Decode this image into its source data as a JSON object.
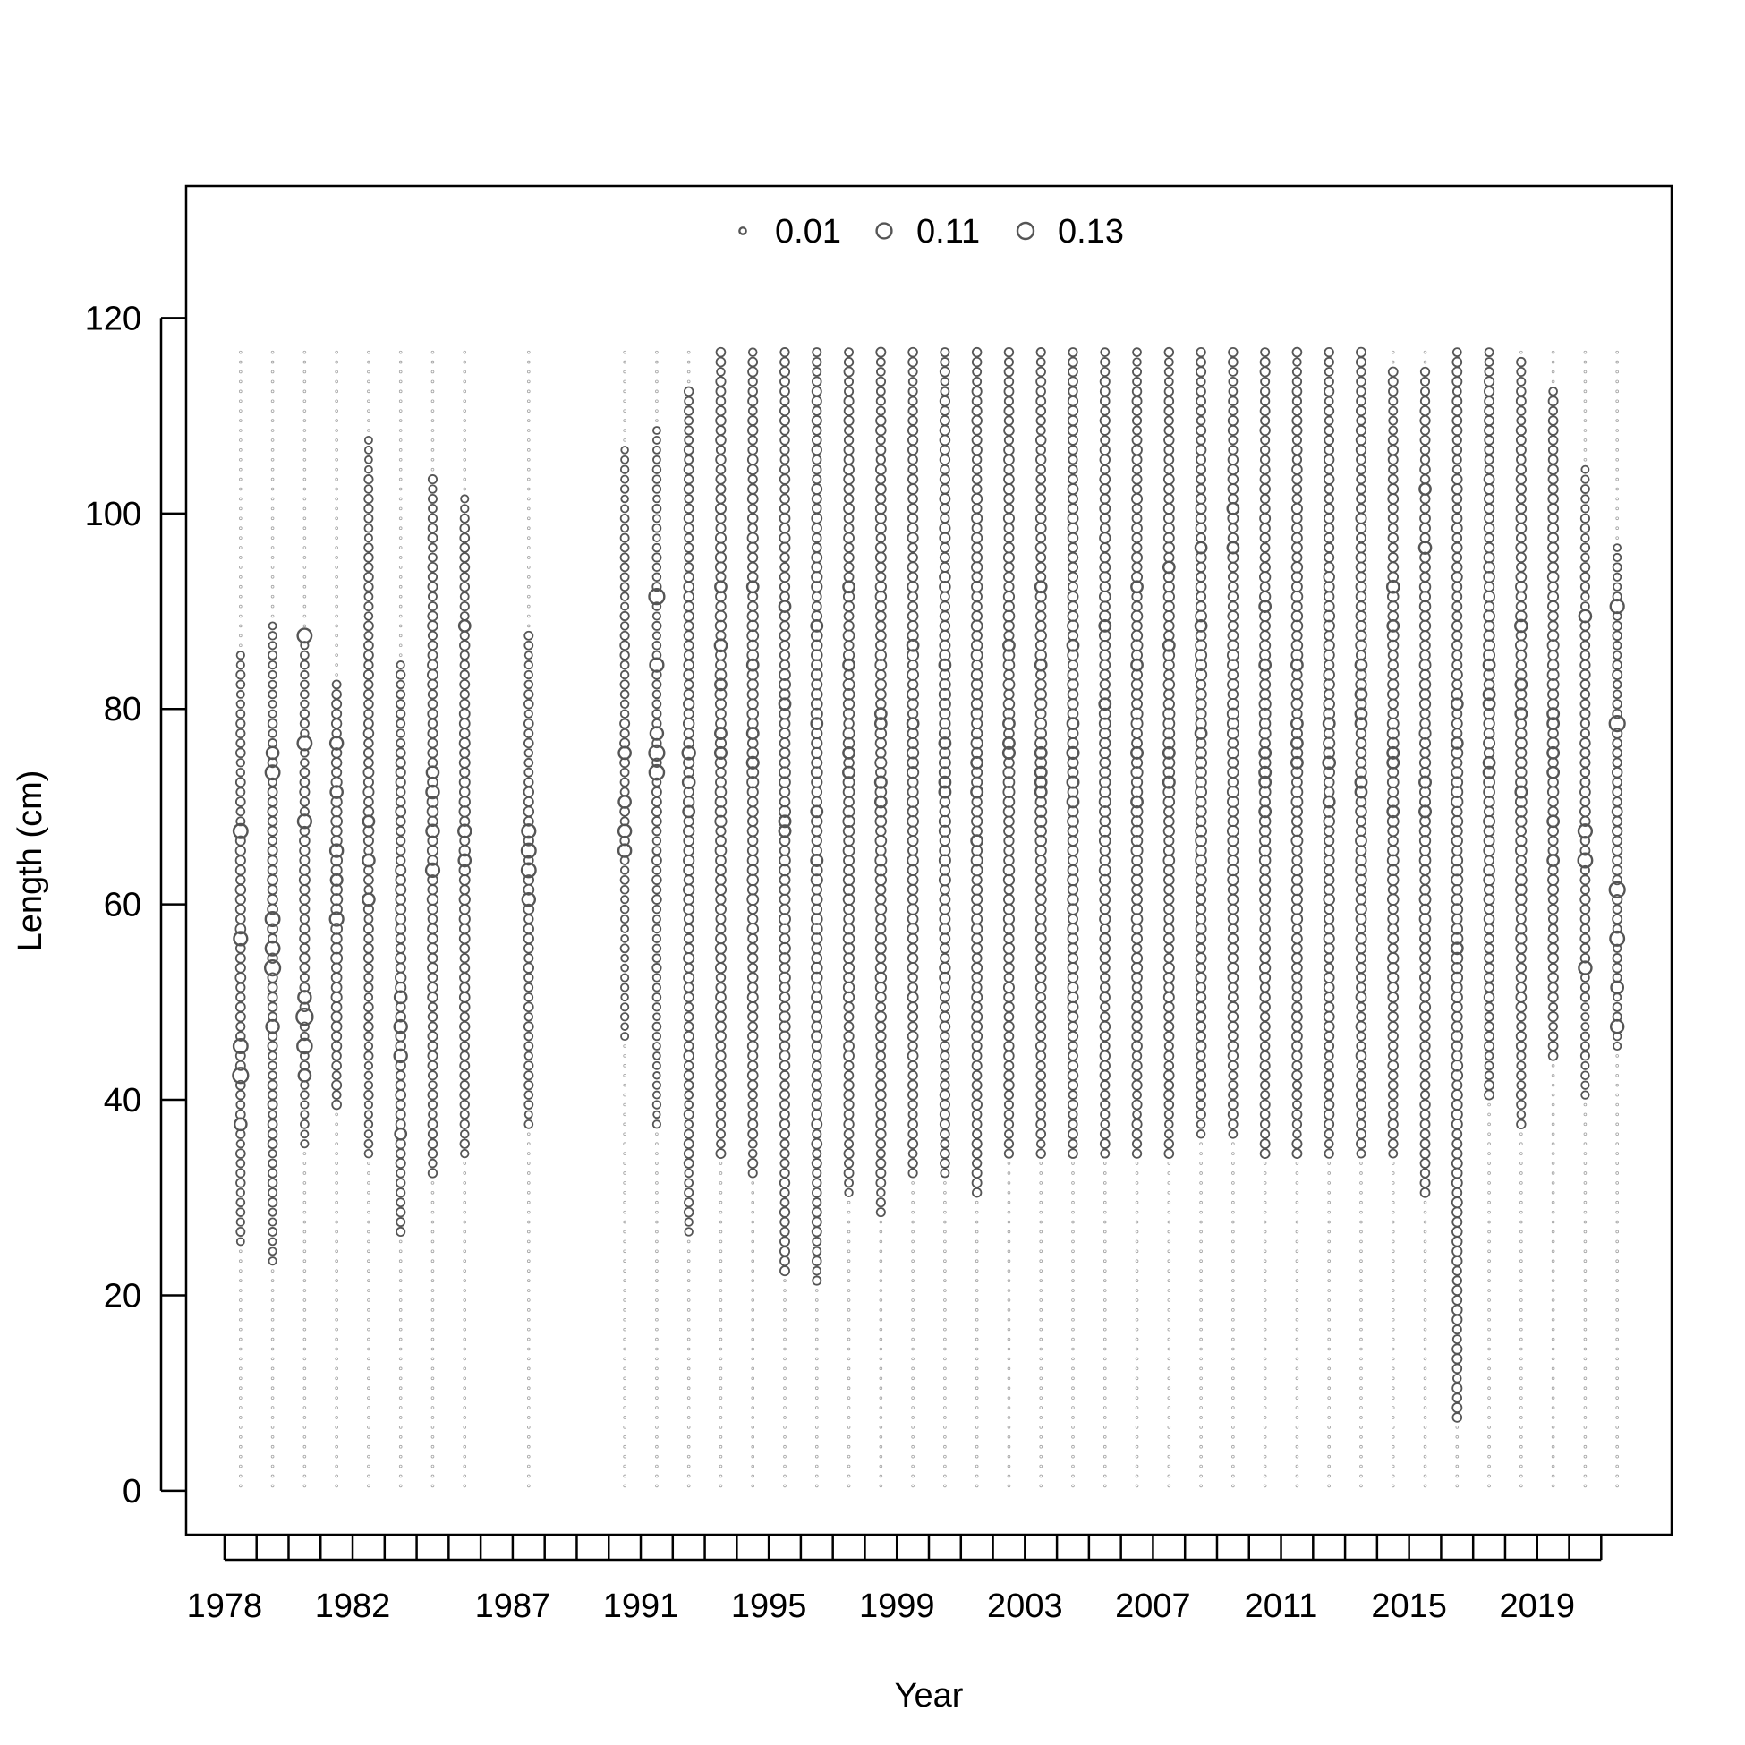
{
  "chart_data": {
    "type": "scatter",
    "subtype": "bubble",
    "xlabel": "Year",
    "ylabel": "Length (cm)",
    "xlim": [
      1976.8,
      2023.2
    ],
    "ylim": [
      -4.5,
      133.5
    ],
    "x_ticks": [
      1978,
      1979,
      1980,
      1981,
      1982,
      1983,
      1984,
      1985,
      1986,
      1987,
      1988,
      1989,
      1990,
      1991,
      1992,
      1993,
      1994,
      1995,
      1996,
      1997,
      1998,
      1999,
      2000,
      2001,
      2002,
      2003,
      2004,
      2005,
      2006,
      2007,
      2008,
      2009,
      2010,
      2011,
      2012,
      2013,
      2014,
      2015,
      2016,
      2017,
      2018,
      2019,
      2020,
      2021
    ],
    "x_tick_labels": [
      "1978",
      "1982",
      "1987",
      "1991",
      "1995",
      "1999",
      "2003",
      "2007",
      "2011",
      "2015",
      "2019"
    ],
    "y_ticks": [
      0,
      20,
      40,
      60,
      80,
      100,
      120
    ],
    "y_tick_labels": [
      "0",
      "20",
      "40",
      "60",
      "80",
      "100",
      "120"
    ],
    "length_bins": {
      "start": 0.5,
      "end": 116.5,
      "step": 1
    },
    "legend": {
      "placement": "top-center",
      "entries": [
        {
          "label": "0.01",
          "value": 0.01
        },
        {
          "label": "0.11",
          "value": 0.11
        },
        {
          "label": "0.13",
          "value": 0.13
        }
      ]
    },
    "grid": false,
    "colors": {
      "points": "#555555",
      "axes": "#000000"
    },
    "x_values": [
      1978.5,
      1979.5,
      1980.5,
      1981.5,
      1982.5,
      1983.5,
      1984.5,
      1985.5,
      1987.5,
      1990.5,
      1991.5,
      1992.5,
      1993.5,
      1994.5,
      1995.5,
      1996.5,
      1997.5,
      1998.5,
      1999.5,
      2000.5,
      2001.5,
      2002.5,
      2003.5,
      2004.5,
      2005.5,
      2006.5,
      2007.5,
      2008.5,
      2009.5,
      2010.5,
      2011.5,
      2012.5,
      2013.5,
      2014.5,
      2015.5,
      2016.5,
      2017.5,
      2018.5,
      2019.5,
      2020.5,
      2021.5
    ],
    "series": [
      {
        "x": 1978.5,
        "range": [
          25,
          86
        ],
        "mean": 0.025,
        "peaks": [
          [
            42.5,
            0.11
          ],
          [
            45.5,
            0.09
          ],
          [
            56.5,
            0.08
          ],
          [
            67.5,
            0.09
          ],
          [
            37.5,
            0.06
          ]
        ]
      },
      {
        "x": 1979.5,
        "range": [
          23,
          89
        ],
        "mean": 0.025,
        "peaks": [
          [
            53.5,
            0.11
          ],
          [
            55.5,
            0.09
          ],
          [
            58.5,
            0.09
          ],
          [
            73.5,
            0.09
          ],
          [
            47.5,
            0.07
          ],
          [
            75.5,
            0.06
          ]
        ]
      },
      {
        "x": 1980.5,
        "range": [
          35,
          88
        ],
        "mean": 0.025,
        "peaks": [
          [
            48.5,
            0.13
          ],
          [
            45.5,
            0.1
          ],
          [
            87.5,
            0.09
          ],
          [
            76.5,
            0.09
          ],
          [
            68.5,
            0.08
          ],
          [
            50.5,
            0.07
          ],
          [
            42.5,
            0.06
          ]
        ]
      },
      {
        "x": 1981.5,
        "range": [
          39,
          83
        ],
        "mean": 0.035,
        "peaks": [
          [
            58.5,
            0.08
          ],
          [
            65.5,
            0.07
          ],
          [
            76.5,
            0.07
          ],
          [
            71.5,
            0.06
          ]
        ]
      },
      {
        "x": 1982.5,
        "range": [
          34,
          108
        ],
        "mean": 0.025,
        "peaks": [
          [
            60.5,
            0.06
          ],
          [
            64.5,
            0.06
          ],
          [
            68.5,
            0.05
          ]
        ]
      },
      {
        "x": 1983.5,
        "range": [
          26,
          85
        ],
        "mean": 0.03,
        "peaks": [
          [
            44.5,
            0.07
          ],
          [
            47.5,
            0.07
          ],
          [
            50.5,
            0.06
          ],
          [
            36.5,
            0.05
          ]
        ]
      },
      {
        "x": 1984.5,
        "range": [
          32,
          104
        ],
        "mean": 0.03,
        "peaks": [
          [
            63.5,
            0.08
          ],
          [
            67.5,
            0.07
          ],
          [
            71.5,
            0.07
          ],
          [
            73.5,
            0.06
          ]
        ]
      },
      {
        "x": 1985.5,
        "range": [
          34,
          102
        ],
        "mean": 0.03,
        "peaks": [
          [
            67.5,
            0.07
          ],
          [
            64.5,
            0.06
          ],
          [
            88.5,
            0.05
          ]
        ]
      },
      {
        "x": 1987.5,
        "range": [
          37,
          88
        ],
        "mean": 0.025,
        "peaks": [
          [
            63.5,
            0.09
          ],
          [
            65.5,
            0.09
          ],
          [
            67.5,
            0.08
          ],
          [
            60.5,
            0.07
          ]
        ]
      },
      {
        "x": 1990.5,
        "range": [
          46,
          107
        ],
        "mean": 0.02,
        "peaks": [
          [
            65.5,
            0.07
          ],
          [
            67.5,
            0.07
          ],
          [
            70.5,
            0.06
          ],
          [
            75.5,
            0.06
          ]
        ]
      },
      {
        "x": 1991.5,
        "range": [
          37,
          109
        ],
        "mean": 0.02,
        "peaks": [
          [
            91.5,
            0.11
          ],
          [
            75.5,
            0.11
          ],
          [
            73.5,
            0.1
          ],
          [
            84.5,
            0.08
          ],
          [
            77.5,
            0.07
          ]
        ]
      },
      {
        "x": 1992.5,
        "range": [
          26,
          113
        ],
        "mean": 0.03,
        "peaks": [
          [
            75.5,
            0.07
          ],
          [
            72.5,
            0.06
          ],
          [
            69.5,
            0.05
          ]
        ]
      },
      {
        "x": 1993.5,
        "range": [
          34,
          117
        ],
        "mean": 0.035,
        "peaks": [
          [
            86.5,
            0.06
          ],
          [
            82.5,
            0.05
          ],
          [
            92.5,
            0.05
          ]
        ]
      },
      {
        "x": 1994.5,
        "range": [
          32,
          117
        ],
        "mean": 0.035,
        "peaks": [
          [
            92.5,
            0.05
          ],
          [
            84.5,
            0.05
          ]
        ]
      },
      {
        "x": 1995.5,
        "range": [
          22,
          117
        ],
        "mean": 0.035,
        "peaks": [
          [
            90.5,
            0.05
          ],
          [
            80.5,
            0.05
          ]
        ]
      },
      {
        "x": 1996.5,
        "range": [
          21,
          117
        ],
        "mean": 0.035,
        "peaks": [
          [
            88.5,
            0.05
          ],
          [
            78.5,
            0.05
          ]
        ]
      },
      {
        "x": 1997.5,
        "range": [
          30,
          117
        ],
        "mean": 0.035,
        "peaks": [
          [
            92.5,
            0.05
          ],
          [
            84.5,
            0.05
          ]
        ]
      },
      {
        "x": 1998.5,
        "range": [
          28,
          117
        ],
        "mean": 0.035,
        "peaks": [
          [
            78.5,
            0.05
          ],
          [
            70.5,
            0.05
          ]
        ]
      },
      {
        "x": 1999.5,
        "range": [
          32,
          117
        ],
        "mean": 0.035,
        "peaks": [
          [
            78.5,
            0.05
          ],
          [
            86.5,
            0.05
          ]
        ]
      },
      {
        "x": 2000.5,
        "range": [
          32,
          117
        ],
        "mean": 0.035,
        "peaks": [
          [
            84.5,
            0.05
          ],
          [
            76.5,
            0.05
          ]
        ]
      },
      {
        "x": 2001.5,
        "range": [
          30,
          117
        ],
        "mean": 0.035,
        "peaks": [
          [
            74.5,
            0.05
          ],
          [
            66.5,
            0.05
          ]
        ]
      },
      {
        "x": 2002.5,
        "range": [
          34,
          117
        ],
        "mean": 0.035,
        "peaks": [
          [
            78.5,
            0.05
          ],
          [
            86.5,
            0.05
          ]
        ]
      },
      {
        "x": 2003.5,
        "range": [
          34,
          117
        ],
        "mean": 0.035,
        "peaks": [
          [
            84.5,
            0.05
          ],
          [
            92.5,
            0.05
          ]
        ]
      },
      {
        "x": 2004.5,
        "range": [
          34,
          117
        ],
        "mean": 0.035,
        "peaks": [
          [
            86.5,
            0.05
          ],
          [
            78.5,
            0.05
          ]
        ]
      },
      {
        "x": 2005.5,
        "range": [
          34,
          117
        ],
        "mean": 0.035,
        "peaks": [
          [
            80.5,
            0.05
          ],
          [
            88.5,
            0.05
          ]
        ]
      },
      {
        "x": 2006.5,
        "range": [
          34,
          117
        ],
        "mean": 0.035,
        "peaks": [
          [
            84.5,
            0.05
          ],
          [
            92.5,
            0.05
          ]
        ]
      },
      {
        "x": 2007.5,
        "range": [
          34,
          117
        ],
        "mean": 0.035,
        "peaks": [
          [
            94.5,
            0.05
          ],
          [
            86.5,
            0.05
          ]
        ]
      },
      {
        "x": 2008.5,
        "range": [
          36,
          117
        ],
        "mean": 0.035,
        "peaks": [
          [
            96.5,
            0.05
          ],
          [
            88.5,
            0.05
          ]
        ]
      },
      {
        "x": 2009.5,
        "range": [
          36,
          117
        ],
        "mean": 0.035,
        "peaks": [
          [
            96.5,
            0.05
          ],
          [
            100.5,
            0.05
          ]
        ]
      },
      {
        "x": 2010.5,
        "range": [
          34,
          117
        ],
        "mean": 0.035,
        "peaks": [
          [
            90.5,
            0.05
          ],
          [
            84.5,
            0.05
          ]
        ]
      },
      {
        "x": 2011.5,
        "range": [
          34,
          117
        ],
        "mean": 0.035,
        "peaks": [
          [
            84.5,
            0.05
          ],
          [
            76.5,
            0.05
          ]
        ]
      },
      {
        "x": 2012.5,
        "range": [
          34,
          117
        ],
        "mean": 0.035,
        "peaks": [
          [
            74.5,
            0.06
          ],
          [
            70.5,
            0.05
          ]
        ]
      },
      {
        "x": 2013.5,
        "range": [
          34,
          117
        ],
        "mean": 0.035,
        "peaks": [
          [
            84.5,
            0.05
          ],
          [
            78.5,
            0.05
          ]
        ]
      },
      {
        "x": 2014.5,
        "range": [
          34,
          115
        ],
        "mean": 0.035,
        "peaks": [
          [
            92.5,
            0.06
          ],
          [
            88.5,
            0.05
          ]
        ]
      },
      {
        "x": 2015.5,
        "range": [
          30,
          115
        ],
        "mean": 0.035,
        "peaks": [
          [
            96.5,
            0.06
          ],
          [
            102.5,
            0.05
          ]
        ]
      },
      {
        "x": 2016.5,
        "range": [
          7,
          117
        ],
        "mean": 0.035,
        "peaks": [
          [
            80.5,
            0.05
          ],
          [
            76.5,
            0.05
          ]
        ]
      },
      {
        "x": 2017.5,
        "range": [
          40,
          117
        ],
        "mean": 0.035,
        "peaks": [
          [
            80.5,
            0.05
          ],
          [
            74.5,
            0.05
          ]
        ]
      },
      {
        "x": 2018.5,
        "range": [
          37,
          116
        ],
        "mean": 0.035,
        "peaks": [
          [
            88.5,
            0.06
          ],
          [
            82.5,
            0.05
          ]
        ]
      },
      {
        "x": 2019.5,
        "range": [
          44,
          113
        ],
        "mean": 0.035,
        "peaks": [
          [
            68.5,
            0.05
          ],
          [
            64.5,
            0.05
          ]
        ]
      },
      {
        "x": 2020.5,
        "range": [
          40,
          105
        ],
        "mean": 0.025,
        "peaks": [
          [
            64.5,
            0.09
          ],
          [
            67.5,
            0.08
          ],
          [
            53.5,
            0.07
          ],
          [
            89.5,
            0.06
          ]
        ]
      },
      {
        "x": 2021.5,
        "range": [
          45,
          97
        ],
        "mean": 0.025,
        "peaks": [
          [
            78.5,
            0.11
          ],
          [
            61.5,
            0.11
          ],
          [
            56.5,
            0.09
          ],
          [
            90.5,
            0.08
          ],
          [
            47.5,
            0.07
          ],
          [
            51.5,
            0.06
          ]
        ]
      }
    ]
  }
}
